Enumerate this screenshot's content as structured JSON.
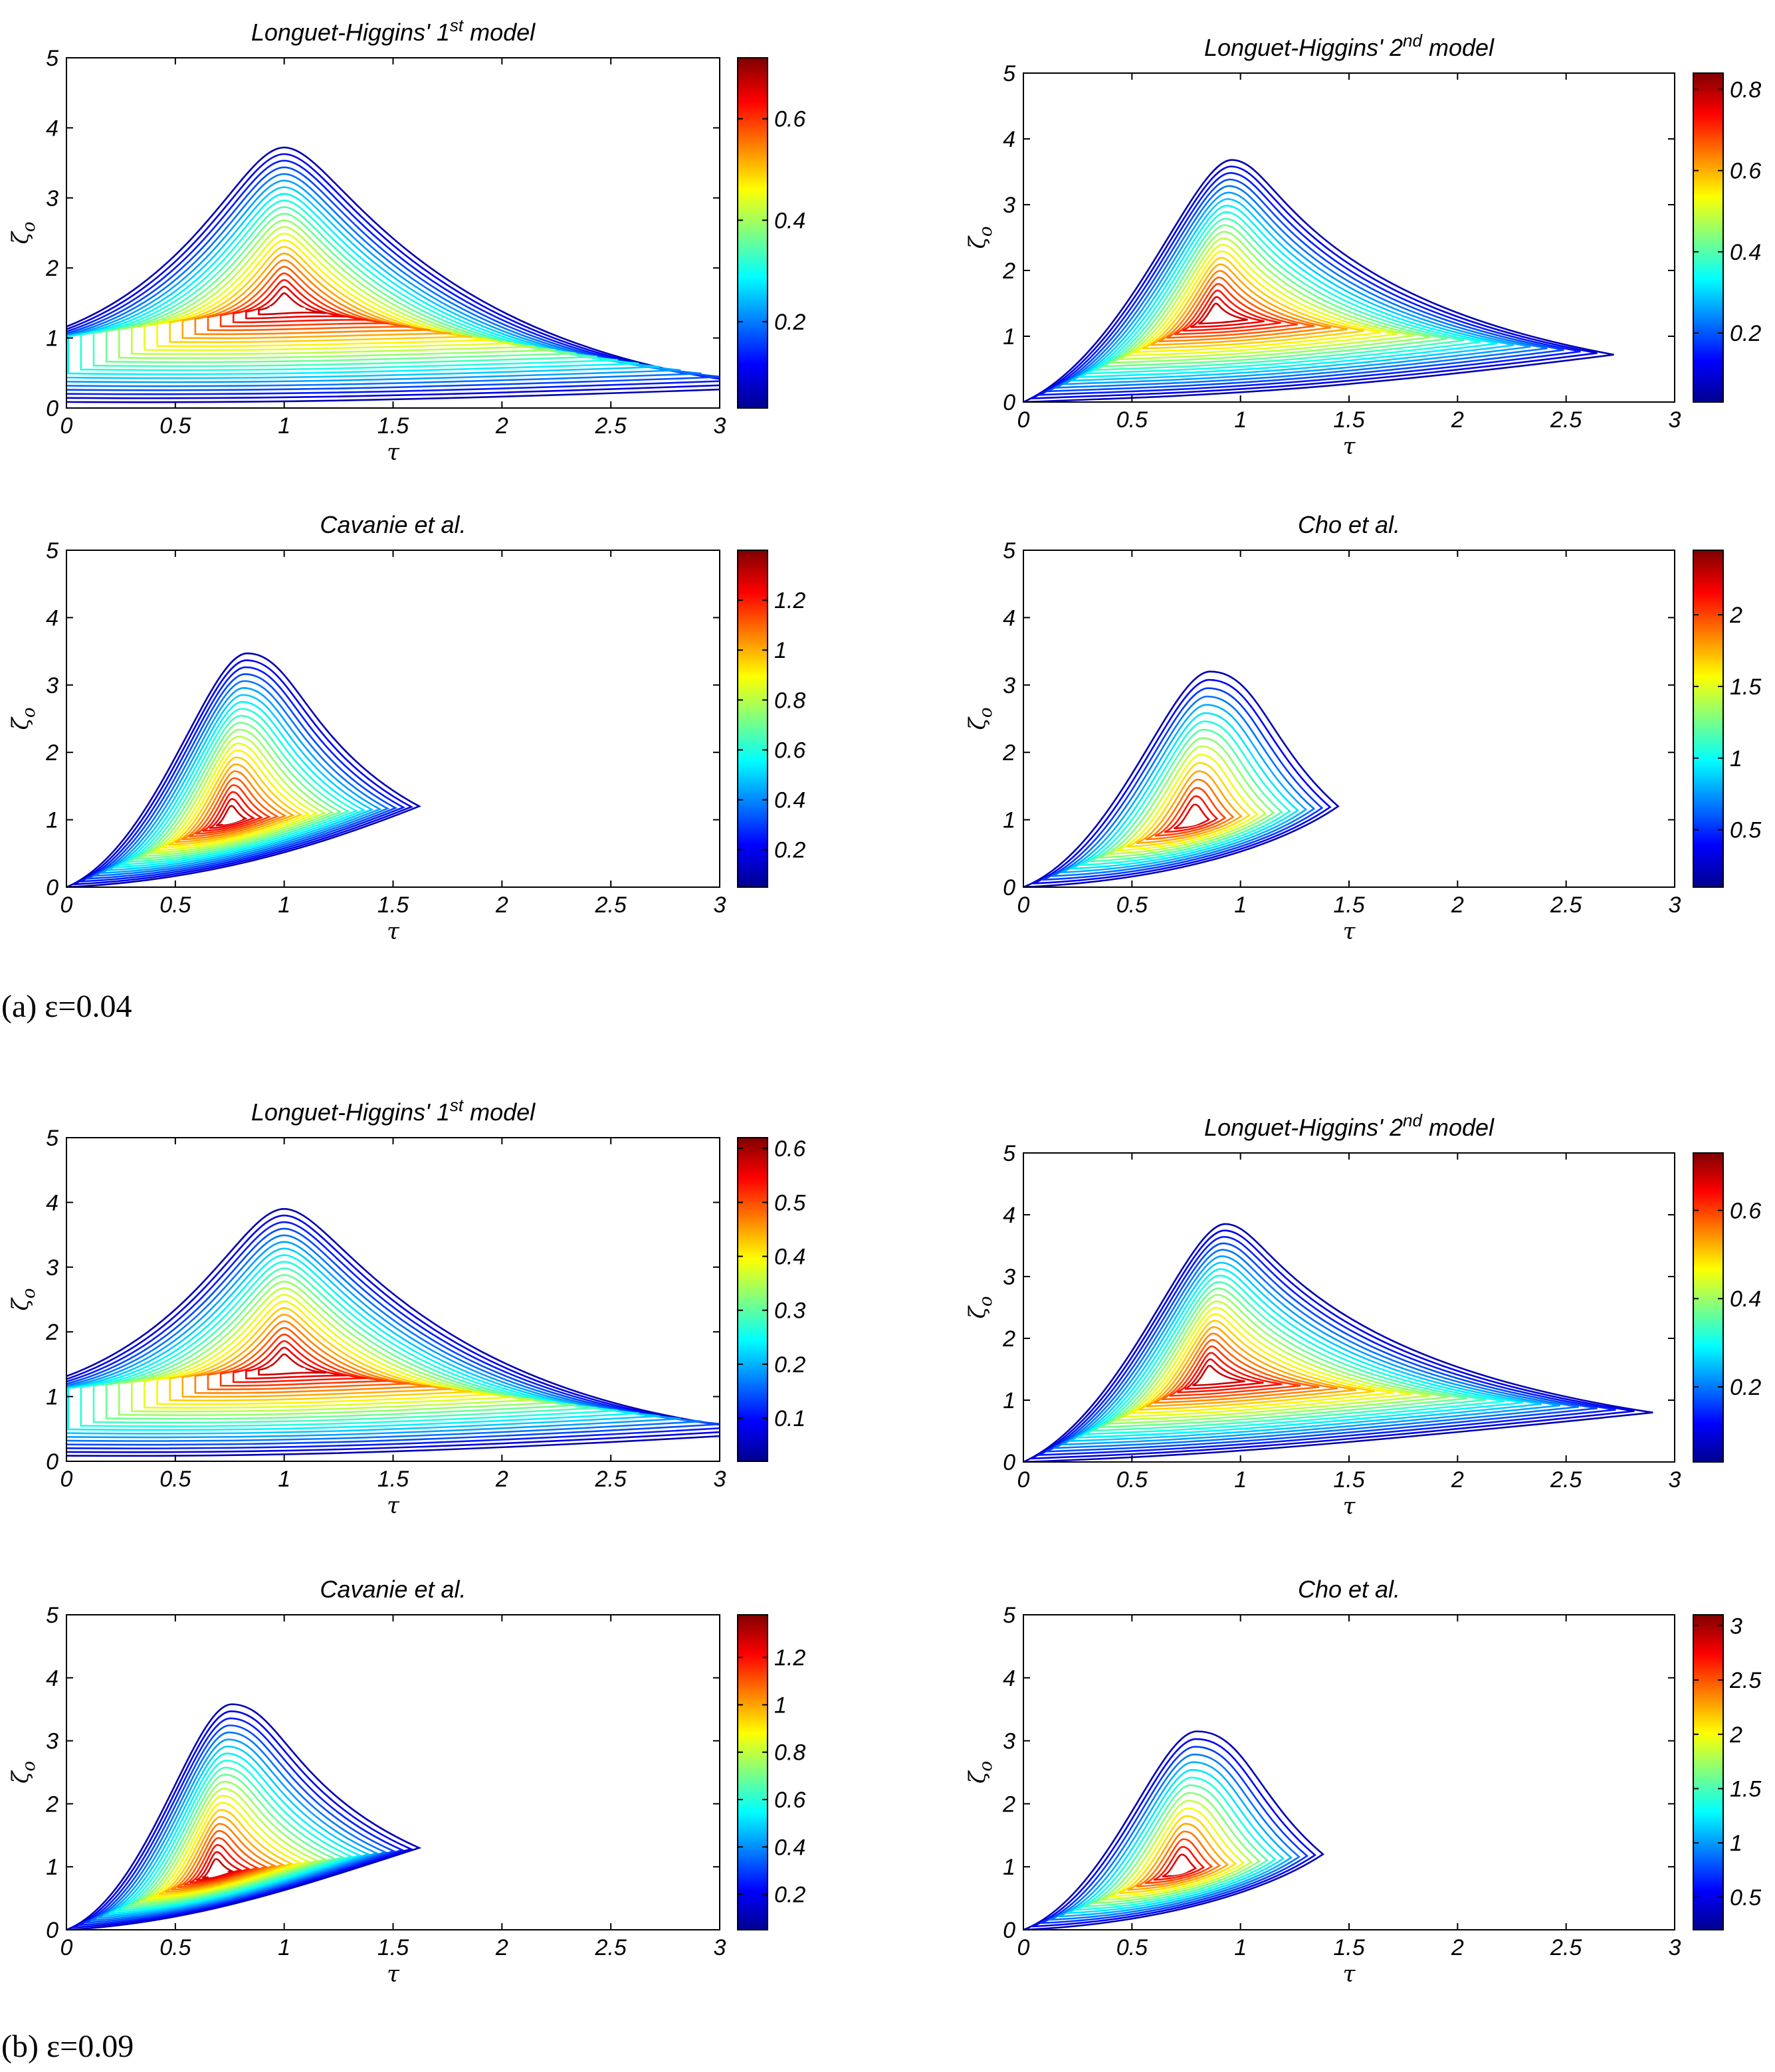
{
  "figure": {
    "captions": [
      "(a)  ε=0.04",
      "(b)  ε=0.09"
    ]
  },
  "chart_data": [
    {
      "type": "contour",
      "group": "a",
      "title_main": "Longuet-Higgins' 1",
      "title_sup": "st",
      "title_tail": " model",
      "xlabel": "τ",
      "ylabel": "ζ",
      "ylabel_sub": "o",
      "xlim": [
        0,
        3
      ],
      "ylim": [
        0,
        5
      ],
      "xticks": [
        "0",
        "0.5",
        "1",
        "1.5",
        "2",
        "2.5",
        "3"
      ],
      "yticks": [
        "0",
        "1",
        "2",
        "3",
        "4",
        "5"
      ],
      "colorbar": {
        "min": 0.03,
        "max": 0.72,
        "ticks": [
          "0.2",
          "0.4",
          "0.6"
        ],
        "tick_values": [
          0.2,
          0.4,
          0.6
        ]
      },
      "peak": {
        "x": 1.0,
        "y": 1.45
      },
      "max_extent": {
        "top": 3.72,
        "right": 3.0,
        "tail_y": 0.3
      },
      "n_levels": 24,
      "shape": "symmetric"
    },
    {
      "type": "contour",
      "group": "a",
      "title_main": "Longuet-Higgins' 2",
      "title_sup": "nd",
      "title_tail": " model",
      "xlabel": "τ",
      "ylabel": "ζ",
      "ylabel_sub": "o",
      "xlim": [
        0,
        3
      ],
      "ylim": [
        0,
        5
      ],
      "xticks": [
        "0",
        "0.5",
        "1",
        "1.5",
        "2",
        "2.5",
        "3"
      ],
      "yticks": [
        "0",
        "1",
        "2",
        "3",
        "4",
        "5"
      ],
      "colorbar": {
        "min": 0.03,
        "max": 0.84,
        "ticks": [
          "0.2",
          "0.4",
          "0.6",
          "0.8"
        ],
        "tick_values": [
          0.2,
          0.4,
          0.6,
          0.8
        ]
      },
      "peak": {
        "x": 0.88,
        "y": 1.3
      },
      "max_extent": {
        "top": 3.68,
        "right": 2.72,
        "tail_y": 0.72
      },
      "n_levels": 24,
      "shape": "skewed"
    },
    {
      "type": "contour",
      "group": "a",
      "title_main": "Cavanie et al.",
      "title_sup": "",
      "title_tail": "",
      "xlabel": "τ",
      "ylabel": "ζ",
      "ylabel_sub": "o",
      "xlim": [
        0,
        3
      ],
      "ylim": [
        0,
        5
      ],
      "xticks": [
        "0",
        "0.5",
        "1",
        "1.5",
        "2",
        "2.5",
        "3"
      ],
      "yticks": [
        "0",
        "1",
        "2",
        "3",
        "4",
        "5"
      ],
      "colorbar": {
        "min": 0.05,
        "max": 1.4,
        "ticks": [
          "0.2",
          "0.4",
          "0.6",
          "0.8",
          "1",
          "1.2"
        ],
        "tick_values": [
          0.2,
          0.4,
          0.6,
          0.8,
          1.0,
          1.2
        ]
      },
      "peak": {
        "x": 0.75,
        "y": 1.0
      },
      "max_extent": {
        "top": 3.47,
        "right": 1.62,
        "tail_y": 1.2
      },
      "n_levels": 24,
      "shape": "skewed"
    },
    {
      "type": "contour",
      "group": "a",
      "title_main": "Cho et al.",
      "title_sup": "",
      "title_tail": "",
      "xlabel": "τ",
      "ylabel": "ζ",
      "ylabel_sub": "o",
      "xlim": [
        0,
        3
      ],
      "ylim": [
        0,
        5
      ],
      "xticks": [
        "0",
        "0.5",
        "1",
        "1.5",
        "2",
        "2.5",
        "3"
      ],
      "yticks": [
        "0",
        "1",
        "2",
        "3",
        "4",
        "5"
      ],
      "colorbar": {
        "min": 0.1,
        "max": 2.45,
        "ticks": [
          "0.5",
          "1",
          "1.5",
          "2"
        ],
        "tick_values": [
          0.5,
          1.0,
          1.5,
          2.0
        ]
      },
      "peak": {
        "x": 0.78,
        "y": 0.98
      },
      "max_extent": {
        "top": 3.2,
        "right": 1.45,
        "tail_y": 1.2
      },
      "n_levels": 18,
      "shape": "skewed"
    },
    {
      "type": "contour",
      "group": "b",
      "title_main": "Longuet-Higgins' 1",
      "title_sup": "st",
      "title_tail": " model",
      "xlabel": "τ",
      "ylabel": "ζ",
      "ylabel_sub": "o",
      "xlim": [
        0,
        3
      ],
      "ylim": [
        0,
        5
      ],
      "xticks": [
        "0",
        "0.5",
        "1",
        "1.5",
        "2",
        "2.5",
        "3"
      ],
      "yticks": [
        "0",
        "1",
        "2",
        "3",
        "4",
        "5"
      ],
      "colorbar": {
        "min": 0.02,
        "max": 0.62,
        "ticks": [
          "0.1",
          "0.2",
          "0.3",
          "0.4",
          "0.5",
          "0.6"
        ],
        "tick_values": [
          0.1,
          0.2,
          0.3,
          0.4,
          0.5,
          0.6
        ]
      },
      "peak": {
        "x": 1.0,
        "y": 1.45
      },
      "max_extent": {
        "top": 3.9,
        "right": 3.0,
        "tail_y": 0.45
      },
      "n_levels": 24,
      "shape": "symmetric"
    },
    {
      "type": "contour",
      "group": "b",
      "title_main": "Longuet-Higgins' 2",
      "title_sup": "nd",
      "title_tail": " model",
      "xlabel": "τ",
      "ylabel": "ζ",
      "ylabel_sub": "o",
      "xlim": [
        0,
        3
      ],
      "ylim": [
        0,
        5
      ],
      "xticks": [
        "0",
        "0.5",
        "1",
        "1.5",
        "2",
        "2.5",
        "3"
      ],
      "yticks": [
        "0",
        "1",
        "2",
        "3",
        "4",
        "5"
      ],
      "colorbar": {
        "min": 0.03,
        "max": 0.73,
        "ticks": [
          "0.2",
          "0.4",
          "0.6"
        ],
        "tick_values": [
          0.2,
          0.4,
          0.6
        ]
      },
      "peak": {
        "x": 0.85,
        "y": 1.35
      },
      "max_extent": {
        "top": 3.85,
        "right": 2.9,
        "tail_y": 0.8
      },
      "n_levels": 24,
      "shape": "skewed"
    },
    {
      "type": "contour",
      "group": "b",
      "title_main": "Cavanie et al.",
      "title_sup": "",
      "title_tail": "",
      "xlabel": "τ",
      "ylabel": "ζ",
      "ylabel_sub": "o",
      "xlim": [
        0,
        3
      ],
      "ylim": [
        0,
        5
      ],
      "xticks": [
        "0",
        "0.5",
        "1",
        "1.5",
        "2",
        "2.5",
        "3"
      ],
      "yticks": [
        "0",
        "1",
        "2",
        "3",
        "4",
        "5"
      ],
      "colorbar": {
        "min": 0.05,
        "max": 1.38,
        "ticks": [
          "0.2",
          "0.4",
          "0.6",
          "0.8",
          "1",
          "1.2"
        ],
        "tick_values": [
          0.2,
          0.4,
          0.6,
          0.8,
          1.0,
          1.2
        ]
      },
      "peak": {
        "x": 0.68,
        "y": 0.9
      },
      "max_extent": {
        "top": 3.58,
        "right": 1.62,
        "tail_y": 1.3
      },
      "n_levels": 24,
      "shape": "skewed"
    },
    {
      "type": "contour",
      "group": "b",
      "title_main": "Cho et al.",
      "title_sup": "",
      "title_tail": "",
      "xlabel": "τ",
      "ylabel": "ζ",
      "ylabel_sub": "o",
      "xlim": [
        0,
        3
      ],
      "ylim": [
        0,
        5
      ],
      "xticks": [
        "0",
        "0.5",
        "1",
        "1.5",
        "2",
        "2.5",
        "3"
      ],
      "yticks": [
        "0",
        "1",
        "2",
        "3",
        "4",
        "5"
      ],
      "colorbar": {
        "min": 0.2,
        "max": 3.1,
        "ticks": [
          "0.5",
          "1",
          "1.5",
          "2",
          "2.5",
          "3"
        ],
        "tick_values": [
          0.5,
          1.0,
          1.5,
          2.0,
          2.5,
          3.0
        ]
      },
      "peak": {
        "x": 0.72,
        "y": 0.95
      },
      "max_extent": {
        "top": 3.15,
        "right": 1.38,
        "tail_y": 1.2
      },
      "n_levels": 18,
      "shape": "skewed"
    }
  ]
}
